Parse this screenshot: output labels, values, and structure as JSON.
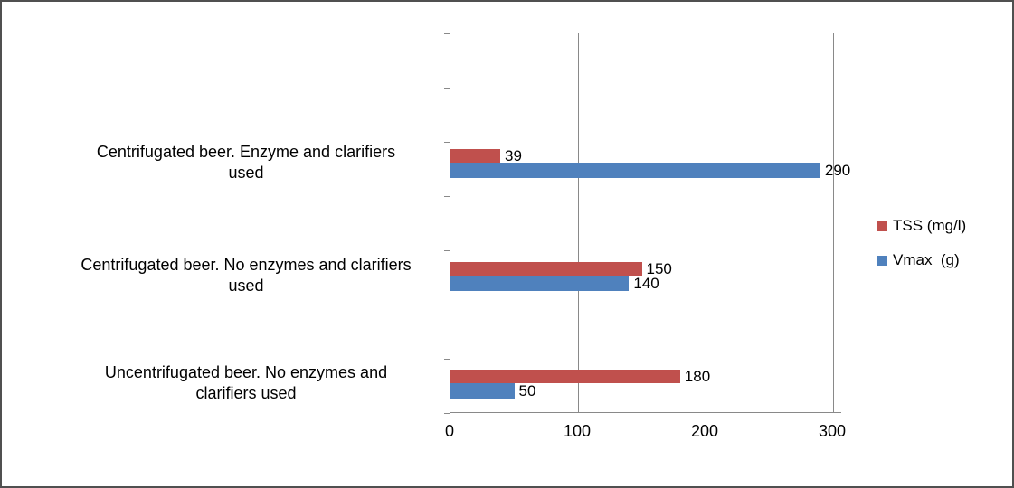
{
  "figure": {
    "background": "#ffffff",
    "border_color": "#505050"
  },
  "chart_data": {
    "type": "bar",
    "orientation": "horizontal",
    "title": "",
    "xlabel": "",
    "ylabel": "",
    "categories": [
      "Centrifugated beer. Enzyme and clarifiers used",
      "Centrifugated beer. No enzymes and clarifiers used",
      "Uncentrifugated beer. No enzymes and clarifiers used"
    ],
    "category_label_lines": [
      [
        "Centrifugated beer. Enzyme and clarifiers",
        "used"
      ],
      [
        "Centrifugated beer. No enzymes and clarifiers",
        "used"
      ],
      [
        "Uncentrifugated beer. No enzymes and",
        "clarifiers used"
      ]
    ],
    "series": [
      {
        "name": "TSS (mg/l)",
        "color": "#C0504D",
        "values": [
          39,
          150,
          180
        ]
      },
      {
        "name": "Vmax  (g)",
        "color": "#4F81BD",
        "values": [
          290,
          140,
          50
        ]
      }
    ],
    "x_ticks": [
      0,
      100,
      200,
      300
    ],
    "xlim": [
      0,
      307
    ],
    "grid": true,
    "gridline_color": "#898989",
    "data_labels": true,
    "legend_position": "right"
  }
}
